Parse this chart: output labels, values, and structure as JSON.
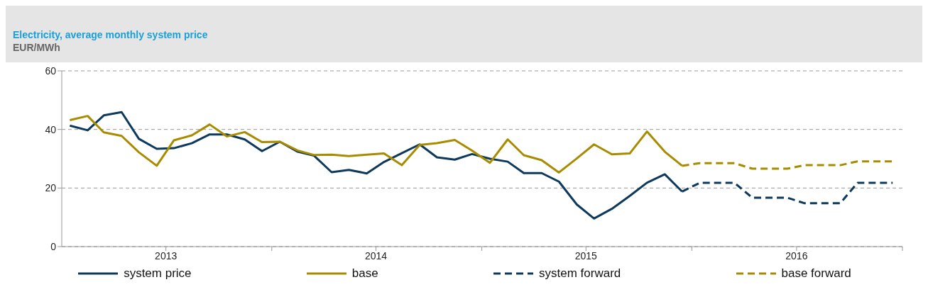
{
  "chart_data": {
    "type": "line",
    "title": "Electricity, average monthly system price",
    "subtitle": "EUR/MWh",
    "x": [
      "2013-01-15",
      "2013-02-15",
      "2013-03-15",
      "2013-04-15",
      "2013-05-15",
      "2013-06-15",
      "2013-07-15",
      "2013-08-15",
      "2013-09-15",
      "2013-10-15",
      "2013-11-15",
      "2013-12-15",
      "2014-01-15",
      "2014-02-15",
      "2014-03-15",
      "2014-04-15",
      "2014-05-15",
      "2014-06-15",
      "2014-07-15",
      "2014-08-15",
      "2014-09-15",
      "2014-10-15",
      "2014-11-15",
      "2014-12-15",
      "2015-01-15",
      "2015-02-15",
      "2015-03-15",
      "2015-04-15",
      "2015-05-15",
      "2015-06-15",
      "2015-07-15",
      "2015-08-15",
      "2015-09-15",
      "2015-10-15",
      "2015-11-15",
      "2015-12-15"
    ],
    "series": [
      {
        "name": "system price",
        "color": "#0d3a5c",
        "line_style": "solid",
        "values": [
          41.3,
          39.7,
          44.8,
          45.9,
          36.8,
          33.4,
          33.6,
          35.3,
          38.3,
          38.3,
          36.6,
          32.6,
          35.8,
          32.4,
          31.1,
          25.4,
          26.2,
          25.0,
          28.9,
          31.9,
          34.9,
          30.5,
          29.7,
          31.6,
          30.0,
          29.0,
          25.1,
          25.1,
          22.2,
          14.4,
          9.6,
          12.9,
          17.3,
          21.8,
          24.7,
          18.8
        ]
      },
      {
        "name": "base",
        "color": "#a88c00",
        "line_style": "solid",
        "values": [
          43.2,
          44.6,
          39.0,
          37.8,
          32.2,
          27.6,
          36.3,
          38.0,
          41.7,
          37.6,
          39.1,
          35.7,
          35.8,
          32.8,
          31.3,
          31.4,
          30.9,
          31.4,
          31.8,
          27.8,
          34.7,
          35.3,
          36.4,
          32.8,
          28.6,
          36.6,
          31.2,
          29.5,
          25.3,
          30.1,
          34.9,
          31.5,
          31.8,
          39.3,
          32.4,
          27.6
        ]
      },
      {
        "name": "system forward",
        "color": "#0d3a5c",
        "line_style": "dashed",
        "x": [
          "2015-12-15",
          "2016-01-15",
          "2016-02-15",
          "2016-03-15",
          "2016-04-15",
          "2016-05-15",
          "2016-06-15",
          "2016-07-15",
          "2016-08-15",
          "2016-09-15",
          "2016-10-15",
          "2016-11-15",
          "2016-12-15"
        ],
        "values": [
          18.8,
          21.8,
          21.8,
          21.8,
          16.7,
          16.7,
          16.7,
          14.8,
          14.8,
          14.8,
          21.8,
          21.8,
          21.8
        ]
      },
      {
        "name": "base forward",
        "color": "#a88c00",
        "line_style": "dashed",
        "x": [
          "2015-12-15",
          "2016-01-15",
          "2016-02-15",
          "2016-03-15",
          "2016-04-15",
          "2016-05-15",
          "2016-06-15",
          "2016-07-15",
          "2016-08-15",
          "2016-09-15",
          "2016-10-15",
          "2016-11-15",
          "2016-12-15"
        ],
        "values": [
          27.6,
          28.5,
          28.5,
          28.5,
          26.6,
          26.6,
          26.6,
          27.8,
          27.8,
          27.8,
          29.1,
          29.1,
          29.1
        ]
      }
    ],
    "xlim": [
      "2013-01-01",
      "2017-01-01"
    ],
    "xticks": [
      {
        "value": "2013-07-01",
        "label": "2013"
      },
      {
        "value": "2014-01-01",
        "label": null
      },
      {
        "value": "2014-07-01",
        "label": "2014"
      },
      {
        "value": "2015-01-01",
        "label": null
      },
      {
        "value": "2015-07-01",
        "label": "2015"
      },
      {
        "value": "2016-01-01",
        "label": null
      },
      {
        "value": "2016-07-01",
        "label": "2016"
      },
      {
        "value": "2017-01-01",
        "label": null
      }
    ],
    "ylim": [
      0,
      60
    ],
    "yticks": [
      0,
      20,
      40,
      60
    ],
    "grid": "y",
    "legend": "bottom",
    "marker": "none"
  }
}
